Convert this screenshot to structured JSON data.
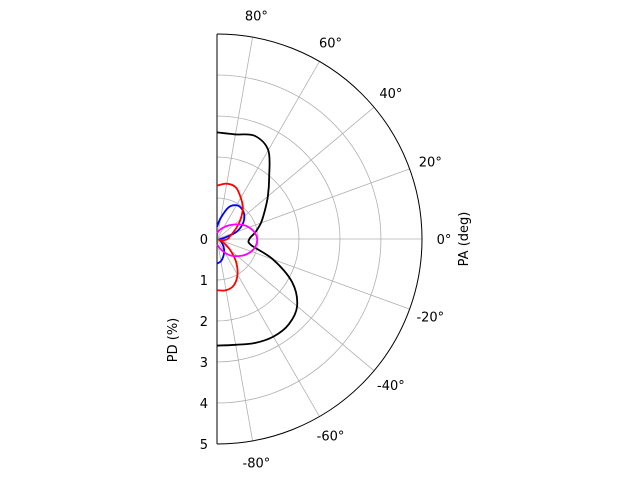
{
  "chart_data": {
    "type": "polar-line",
    "angle_axis": {
      "label": "PA (deg)",
      "range": [
        -90,
        90
      ],
      "ticks": [
        -80,
        -60,
        -40,
        -20,
        0,
        20,
        40,
        60,
        80
      ],
      "tick_labels": [
        "-80°",
        "-60°",
        "-40°",
        "-20°",
        "0°",
        "20°",
        "40°",
        "60°",
        "80°"
      ]
    },
    "radial_axis": {
      "label": "PD (%)",
      "range": [
        0,
        5
      ],
      "ticks": [
        0,
        1,
        2,
        3,
        4,
        5
      ],
      "tick_labels": [
        "0",
        "1",
        "2",
        "3",
        "4",
        "5"
      ]
    },
    "grid": true,
    "series": [
      {
        "color": "#000000",
        "points": [
          [
            -90,
            2.6
          ],
          [
            -80,
            2.62
          ],
          [
            -70,
            2.7
          ],
          [
            -60,
            2.75
          ],
          [
            -50,
            2.72
          ],
          [
            -40,
            2.55
          ],
          [
            -30,
            2.12
          ],
          [
            -20,
            1.45
          ],
          [
            -10,
            0.84
          ],
          [
            0,
            0.79
          ],
          [
            10,
            0.95
          ],
          [
            20,
            1.14
          ],
          [
            30,
            1.34
          ],
          [
            40,
            1.62
          ],
          [
            50,
            1.98
          ],
          [
            60,
            2.5
          ],
          [
            70,
            2.68
          ],
          [
            80,
            2.59
          ],
          [
            90,
            2.6
          ]
        ]
      },
      {
        "color": "#0000ff",
        "points": [
          [
            -90,
            0.6
          ],
          [
            -80,
            0.55
          ],
          [
            -70,
            0.45
          ],
          [
            -60,
            0.35
          ],
          [
            -50,
            0.25
          ],
          [
            -40,
            0.16
          ],
          [
            -30,
            0.1
          ],
          [
            -20,
            0.07
          ],
          [
            -10,
            0.06
          ],
          [
            0,
            0.08
          ],
          [
            10,
            0.2
          ],
          [
            20,
            0.5
          ],
          [
            30,
            0.72
          ],
          [
            40,
            0.87
          ],
          [
            50,
            0.95
          ],
          [
            60,
            0.95
          ],
          [
            70,
            0.82
          ],
          [
            80,
            0.52
          ],
          [
            90,
            0.3
          ]
        ]
      },
      {
        "color": "#ff0000",
        "points": [
          [
            -90,
            1.25
          ],
          [
            -80,
            1.27
          ],
          [
            -70,
            1.2
          ],
          [
            -60,
            1.0
          ],
          [
            -50,
            0.72
          ],
          [
            -40,
            0.42
          ],
          [
            -30,
            0.2
          ],
          [
            -20,
            0.05
          ],
          [
            -10,
            0.17
          ],
          [
            0,
            0.26
          ],
          [
            10,
            0.31
          ],
          [
            20,
            0.4
          ],
          [
            30,
            0.55
          ],
          [
            40,
            0.75
          ],
          [
            50,
            0.98
          ],
          [
            60,
            1.16
          ],
          [
            70,
            1.34
          ],
          [
            80,
            1.37
          ],
          [
            90,
            1.3
          ]
        ]
      },
      {
        "color": "#ff00ff",
        "points": [
          [
            -90,
            0.13
          ],
          [
            -80,
            0.18
          ],
          [
            -70,
            0.27
          ],
          [
            -60,
            0.39
          ],
          [
            -50,
            0.53
          ],
          [
            -40,
            0.65
          ],
          [
            -30,
            0.78
          ],
          [
            -20,
            0.89
          ],
          [
            -10,
            0.96
          ],
          [
            0,
            0.98
          ],
          [
            10,
            0.93
          ],
          [
            20,
            0.83
          ],
          [
            30,
            0.7
          ],
          [
            40,
            0.55
          ],
          [
            50,
            0.43
          ],
          [
            60,
            0.33
          ],
          [
            70,
            0.25
          ],
          [
            80,
            0.19
          ],
          [
            90,
            0.15
          ]
        ]
      }
    ]
  }
}
